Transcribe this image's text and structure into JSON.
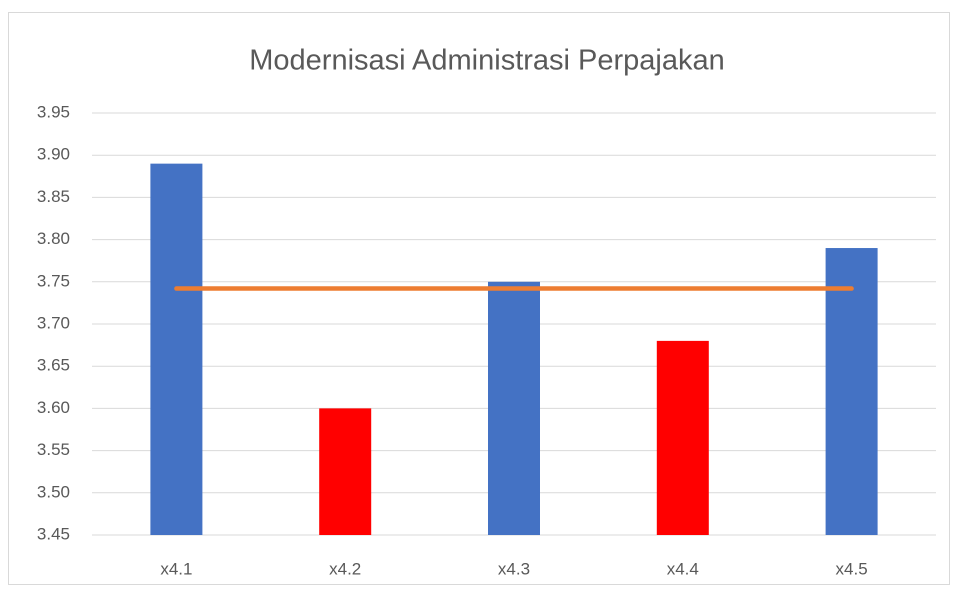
{
  "chart_data": {
    "type": "bar",
    "title": "Modernisasi Administrasi Perpajakan",
    "categories": [
      "x4.1",
      "x4.2",
      "x4.3",
      "x4.4",
      "x4.5"
    ],
    "series": [
      {
        "type": "bar",
        "colors": [
          "#4472c4",
          "#ff0000",
          "#4472c4",
          "#ff0000",
          "#4472c4"
        ],
        "values": [
          3.89,
          3.6,
          3.75,
          3.68,
          3.79
        ]
      },
      {
        "type": "line",
        "color": "#ed7d31",
        "values": [
          3.742,
          3.742,
          3.742,
          3.742,
          3.742
        ]
      }
    ],
    "ylim": [
      3.45,
      3.95
    ],
    "yticks": [
      3.45,
      {
        "value": 3.5,
        "label": "3.50"
      },
      3.55,
      {
        "value": 3.6,
        "label": "3.60"
      },
      3.65,
      {
        "value": 3.7,
        "label": "3.70"
      },
      3.75,
      {
        "value": 3.8,
        "label": "3.80"
      },
      3.85,
      {
        "value": 3.9,
        "label": "3.90"
      },
      3.95
    ],
    "grid": true
  }
}
